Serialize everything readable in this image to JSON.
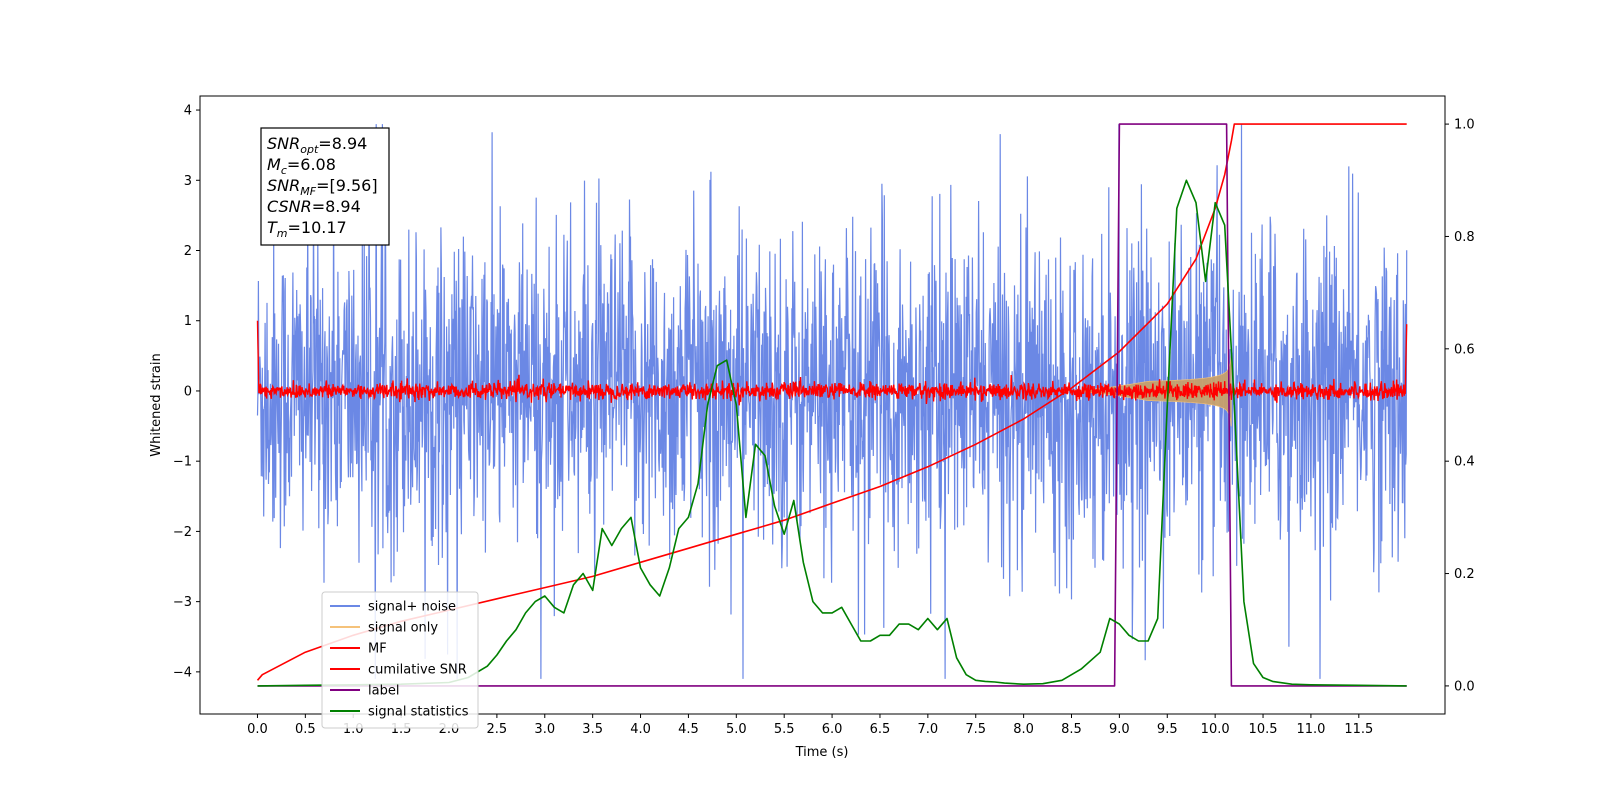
{
  "chart_data": {
    "type": "line",
    "xlabel": "Time (s)",
    "ylabel": "Whitened strain",
    "xlim": [
      -0.6,
      12.4
    ],
    "ylim": [
      -4.6,
      4.2
    ],
    "ylim_right": [
      -0.05,
      1.05
    ],
    "x_ticks": [
      0.0,
      0.5,
      1.0,
      1.5,
      2.0,
      2.5,
      3.0,
      3.5,
      4.0,
      4.5,
      5.0,
      5.5,
      6.0,
      6.5,
      7.0,
      7.5,
      8.0,
      8.5,
      9.0,
      9.5,
      10.0,
      10.5,
      11.0,
      11.5
    ],
    "x_tick_labels": [
      "0.0",
      "0.5",
      "1.0",
      "1.5",
      "2.0",
      "2.5",
      "3.0",
      "3.5",
      "4.0",
      "4.5",
      "5.0",
      "5.5",
      "6.0",
      "6.5",
      "7.0",
      "7.5",
      "8.0",
      "8.5",
      "9.0",
      "9.5",
      "10.0",
      "10.5",
      "11.0",
      "11.5"
    ],
    "y_ticks": [
      -4,
      -3,
      -2,
      -1,
      0,
      1,
      2,
      3,
      4
    ],
    "y_tick_labels": [
      "−4",
      "−3",
      "−2",
      "−1",
      "0",
      "1",
      "2",
      "3",
      "4"
    ],
    "y_right_ticks": [
      0.0,
      0.2,
      0.4,
      0.6,
      0.8,
      1.0
    ],
    "y_right_tick_labels": [
      "0.0",
      "0.2",
      "0.4",
      "0.6",
      "0.8",
      "1.0"
    ],
    "annotation": {
      "lines": [
        {
          "base": "SNR",
          "sub": "opt",
          "rest": "=8.94"
        },
        {
          "base": "M",
          "sub": "c",
          "rest": "=6.08"
        },
        {
          "base": "SNR",
          "sub": "MF",
          "rest": "=[9.56]"
        },
        {
          "base": "CSNR",
          "sub": "",
          "rest": "=8.94"
        },
        {
          "base": "T",
          "sub": "m",
          "rest": "=10.17"
        }
      ]
    },
    "legend_position": "lower-left",
    "series": [
      {
        "name": "signal+ noise",
        "color": "#6b88e5",
        "axis": "left",
        "description_values": {
          "x_range": [
            0.0,
            12.0
          ],
          "envelope_min": -4.1,
          "envelope_max": 3.8,
          "typical_abs": 1.5
        }
      },
      {
        "name": "signal only",
        "color": "#f5c27a",
        "axis": "left",
        "chirp": {
          "t_start": 8.5,
          "t_merge": 10.17,
          "max_amplitude": 0.5
        }
      },
      {
        "name": "MF",
        "color": "#ff0000",
        "axis": "left",
        "description_values": {
          "x_range": [
            0.0,
            12.0
          ],
          "typical_abs": 0.12,
          "start_value": 1.0,
          "end_value": 0.95
        }
      },
      {
        "name": "cumilative SNR",
        "color": "#ff0000",
        "axis": "right",
        "x": [
          0.0,
          0.05,
          0.5,
          1.0,
          1.5,
          2.0,
          2.5,
          3.0,
          3.5,
          4.0,
          4.5,
          5.0,
          5.5,
          6.0,
          6.5,
          7.0,
          7.5,
          8.0,
          8.5,
          9.0,
          9.5,
          9.8,
          10.0,
          10.1,
          10.17,
          10.2,
          12.0
        ],
        "y": [
          0.01,
          0.02,
          0.06,
          0.09,
          0.115,
          0.135,
          0.155,
          0.175,
          0.195,
          0.22,
          0.245,
          0.27,
          0.295,
          0.325,
          0.355,
          0.39,
          0.43,
          0.475,
          0.53,
          0.595,
          0.68,
          0.76,
          0.85,
          0.91,
          0.97,
          1.0,
          1.0
        ]
      },
      {
        "name": "label",
        "color": "#800080",
        "axis": "right",
        "x": [
          0.0,
          8.95,
          9.0,
          10.12,
          10.17,
          12.0
        ],
        "y": [
          0.0,
          0.0,
          1.0,
          1.0,
          0.0,
          0.0
        ]
      },
      {
        "name": "signal statistics",
        "color": "#008000",
        "axis": "right",
        "x": [
          0.0,
          0.5,
          1.0,
          1.5,
          2.0,
          2.2,
          2.4,
          2.5,
          2.6,
          2.7,
          2.8,
          2.9,
          3.0,
          3.1,
          3.2,
          3.3,
          3.4,
          3.5,
          3.6,
          3.7,
          3.8,
          3.9,
          4.0,
          4.1,
          4.2,
          4.3,
          4.4,
          4.5,
          4.6,
          4.7,
          4.8,
          4.9,
          5.0,
          5.1,
          5.2,
          5.3,
          5.4,
          5.5,
          5.6,
          5.7,
          5.8,
          5.9,
          6.0,
          6.1,
          6.2,
          6.3,
          6.4,
          6.5,
          6.6,
          6.7,
          6.8,
          6.9,
          7.0,
          7.1,
          7.2,
          7.3,
          7.4,
          7.5,
          7.6,
          7.7,
          7.8,
          8.0,
          8.2,
          8.4,
          8.6,
          8.8,
          8.9,
          9.0,
          9.1,
          9.2,
          9.3,
          9.4,
          9.5,
          9.6,
          9.7,
          9.8,
          9.9,
          10.0,
          10.1,
          10.2,
          10.3,
          10.4,
          10.5,
          10.6,
          10.8,
          11.0,
          11.5,
          12.0
        ],
        "y": [
          0.0,
          0.001,
          0.002,
          0.003,
          0.006,
          0.015,
          0.035,
          0.055,
          0.08,
          0.1,
          0.13,
          0.15,
          0.16,
          0.14,
          0.13,
          0.18,
          0.2,
          0.17,
          0.28,
          0.25,
          0.28,
          0.3,
          0.21,
          0.18,
          0.16,
          0.21,
          0.28,
          0.3,
          0.36,
          0.5,
          0.57,
          0.58,
          0.5,
          0.3,
          0.43,
          0.41,
          0.32,
          0.27,
          0.33,
          0.22,
          0.15,
          0.13,
          0.13,
          0.14,
          0.11,
          0.08,
          0.08,
          0.09,
          0.09,
          0.11,
          0.11,
          0.1,
          0.12,
          0.1,
          0.12,
          0.05,
          0.02,
          0.01,
          0.008,
          0.007,
          0.005,
          0.003,
          0.004,
          0.01,
          0.03,
          0.06,
          0.12,
          0.11,
          0.09,
          0.08,
          0.08,
          0.12,
          0.5,
          0.85,
          0.9,
          0.86,
          0.72,
          0.86,
          0.82,
          0.5,
          0.15,
          0.04,
          0.015,
          0.008,
          0.003,
          0.002,
          0.001,
          0.0
        ]
      }
    ]
  }
}
